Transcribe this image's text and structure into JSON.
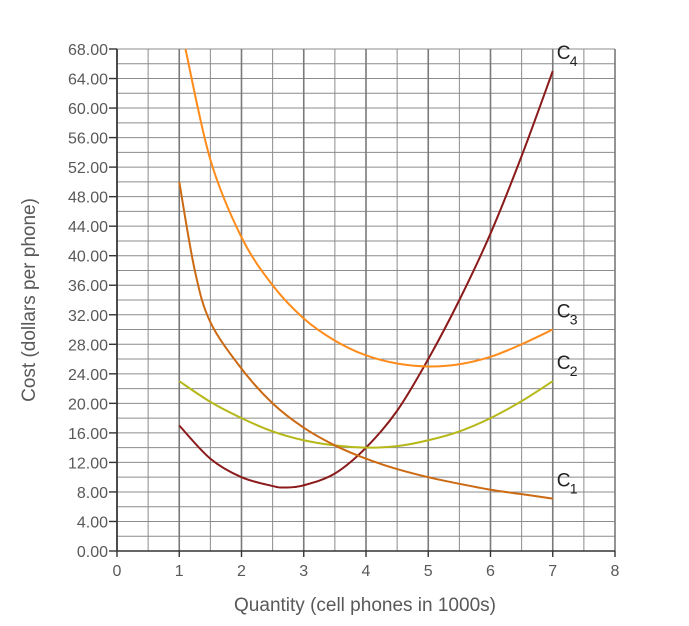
{
  "chart_data": {
    "type": "line",
    "title": "",
    "xlabel": "Quantity (cell phones in 1000s)",
    "ylabel": "Cost (dollars per phone)",
    "xlim": [
      0,
      8
    ],
    "ylim": [
      0,
      68
    ],
    "x_ticks": [
      "0",
      "1",
      "2",
      "3",
      "4",
      "5",
      "6",
      "7",
      "8"
    ],
    "y_ticks": [
      "0.00",
      "4.00",
      "8.00",
      "12.00",
      "16.00",
      "20.00",
      "24.00",
      "28.00",
      "32.00",
      "36.00",
      "40.00",
      "44.00",
      "48.00",
      "52.00",
      "56.00",
      "60.00",
      "64.00",
      "68.00"
    ],
    "grid": true,
    "series": [
      {
        "name": "C4",
        "label_main": "C",
        "label_sub": "4",
        "color": "#8b1a1a",
        "x": [
          1,
          1.5,
          2,
          2.5,
          2.7,
          3,
          3.5,
          4,
          4.5,
          5,
          5.5,
          6,
          6.5,
          7
        ],
        "y": [
          17,
          12.5,
          10,
          8.8,
          8.6,
          8.9,
          10.5,
          14,
          19,
          26,
          34,
          43,
          53.5,
          65
        ]
      },
      {
        "name": "C3",
        "label_main": "C",
        "label_sub": "3",
        "color": "#ff8c1a",
        "x": [
          1.1,
          1.5,
          2,
          2.5,
          3,
          3.5,
          4,
          4.5,
          5,
          5.5,
          6,
          6.5,
          7
        ],
        "y": [
          68,
          53,
          42.5,
          36,
          31.5,
          28.5,
          26.5,
          25.4,
          25,
          25.3,
          26.3,
          28,
          30
        ]
      },
      {
        "name": "C2",
        "label_main": "C",
        "label_sub": "2",
        "color": "#b5b818",
        "x": [
          1,
          1.5,
          2,
          2.5,
          3,
          3.5,
          4,
          4.5,
          5,
          5.5,
          6,
          6.5,
          7
        ],
        "y": [
          23,
          20.2,
          18,
          16.2,
          15,
          14.3,
          14,
          14.2,
          15,
          16.2,
          18,
          20.3,
          23
        ]
      },
      {
        "name": "C1",
        "label_main": "C",
        "label_sub": "1",
        "color": "#cc6a14",
        "x": [
          1,
          1.25,
          1.5,
          2,
          2.5,
          3,
          3.5,
          4,
          4.5,
          5,
          5.5,
          6,
          6.5,
          7
        ],
        "y": [
          50,
          38,
          31,
          24.7,
          20,
          16.7,
          14.3,
          12.5,
          11.1,
          10,
          9.1,
          8.3,
          7.7,
          7.1
        ]
      }
    ]
  }
}
